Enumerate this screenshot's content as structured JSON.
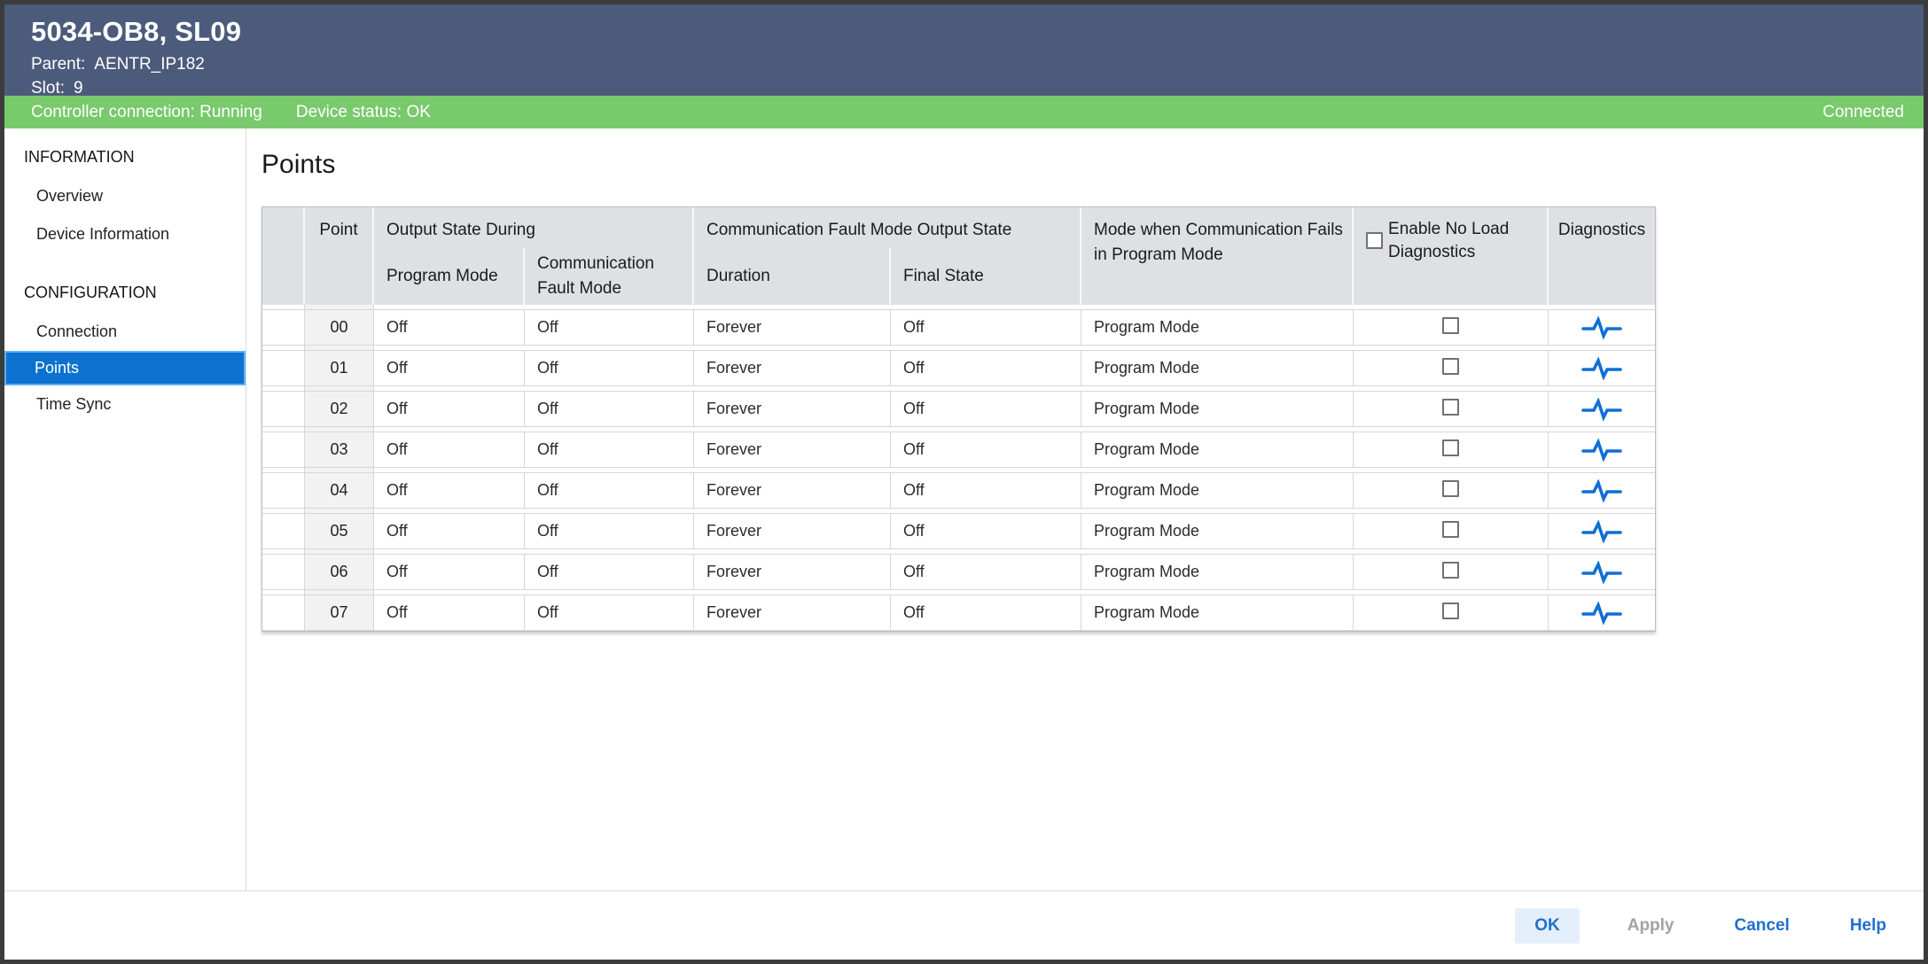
{
  "window": {
    "title": "5034-OB8, SL09",
    "parent_label": "Parent:",
    "parent_value": "AENTR_IP182",
    "slot_label": "Slot:",
    "slot_value": "9"
  },
  "status_bar": {
    "controller_connection": "Controller connection: Running",
    "device_status": "Device status: OK",
    "connection_state": "Connected"
  },
  "sidebar": {
    "sections": [
      {
        "label": "INFORMATION",
        "items": [
          {
            "label": "Overview",
            "selected": false
          },
          {
            "label": "Device Information",
            "selected": false
          }
        ]
      },
      {
        "label": "CONFIGURATION",
        "items": [
          {
            "label": "Connection",
            "selected": false
          },
          {
            "label": "Points",
            "selected": true
          },
          {
            "label": "Time Sync",
            "selected": false
          }
        ]
      }
    ]
  },
  "main": {
    "title": "Points",
    "table": {
      "headers": {
        "selector": "",
        "point": "Point",
        "group_output_state": "Output State During",
        "group_comm_fault": "Communication Fault Mode Output State",
        "program_mode": "Program Mode",
        "communication_fault_mode": "Communication Fault Mode",
        "duration": "Duration",
        "final_state": "Final State",
        "mode_when_comm_fails": "Mode when Communication Fails in Program Mode",
        "enable_no_load": "Enable No Load Diagnostics",
        "diagnostics": "Diagnostics"
      },
      "header_checkbox_checked": false,
      "rows": [
        {
          "point": "00",
          "program_mode": "Off",
          "communication_fault_mode": "Off",
          "duration": "Forever",
          "final_state": "Off",
          "mode_when_comm_fails": "Program Mode",
          "no_load_checked": false
        },
        {
          "point": "01",
          "program_mode": "Off",
          "communication_fault_mode": "Off",
          "duration": "Forever",
          "final_state": "Off",
          "mode_when_comm_fails": "Program Mode",
          "no_load_checked": false
        },
        {
          "point": "02",
          "program_mode": "Off",
          "communication_fault_mode": "Off",
          "duration": "Forever",
          "final_state": "Off",
          "mode_when_comm_fails": "Program Mode",
          "no_load_checked": false
        },
        {
          "point": "03",
          "program_mode": "Off",
          "communication_fault_mode": "Off",
          "duration": "Forever",
          "final_state": "Off",
          "mode_when_comm_fails": "Program Mode",
          "no_load_checked": false
        },
        {
          "point": "04",
          "program_mode": "Off",
          "communication_fault_mode": "Off",
          "duration": "Forever",
          "final_state": "Off",
          "mode_when_comm_fails": "Program Mode",
          "no_load_checked": false
        },
        {
          "point": "05",
          "program_mode": "Off",
          "communication_fault_mode": "Off",
          "duration": "Forever",
          "final_state": "Off",
          "mode_when_comm_fails": "Program Mode",
          "no_load_checked": false
        },
        {
          "point": "06",
          "program_mode": "Off",
          "communication_fault_mode": "Off",
          "duration": "Forever",
          "final_state": "Off",
          "mode_when_comm_fails": "Program Mode",
          "no_load_checked": false
        },
        {
          "point": "07",
          "program_mode": "Off",
          "communication_fault_mode": "Off",
          "duration": "Forever",
          "final_state": "Off",
          "mode_when_comm_fails": "Program Mode",
          "no_load_checked": false
        }
      ]
    }
  },
  "footer": {
    "buttons": [
      {
        "label": "OK",
        "style": "primary",
        "disabled": false
      },
      {
        "label": "Apply",
        "style": "link",
        "disabled": true
      },
      {
        "label": "Cancel",
        "style": "link",
        "disabled": false
      },
      {
        "label": "Help",
        "style": "link",
        "disabled": false
      }
    ]
  },
  "colors": {
    "titlebar_bg": "#4c5b7b",
    "status_bar_bg": "#79c96d",
    "selected_nav_bg": "#0d72cf",
    "selected_nav_outline": "#5fb2f2",
    "table_header_bg": "#dee1e3",
    "link_blue": "#1f6fd0",
    "diagnostics_icon_blue": "#0e6fd6",
    "window_border": "#3c3c3c"
  },
  "icons": {
    "diagnostics": "pulse-icon",
    "row_checkbox": "checkbox",
    "header_checkbox": "checkbox"
  }
}
